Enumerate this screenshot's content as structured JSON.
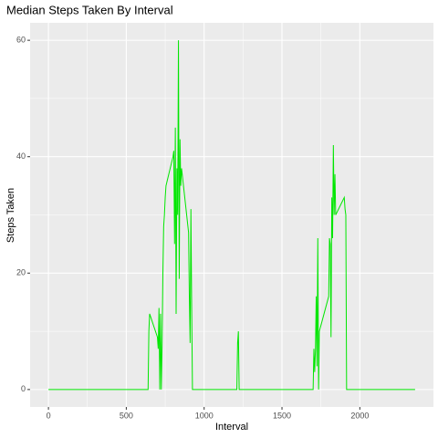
{
  "chart_data": {
    "type": "line",
    "title": "Median Steps Taken By Interval",
    "x_label": "Interval",
    "y_label": "Steps Taken",
    "x": [
      0,
      640,
      645,
      650,
      700,
      705,
      710,
      715,
      720,
      725,
      730,
      735,
      740,
      745,
      750,
      755,
      800,
      805,
      810,
      815,
      820,
      825,
      830,
      835,
      840,
      845,
      850,
      855,
      900,
      905,
      910,
      915,
      920,
      925,
      930,
      1210,
      1215,
      1220,
      1225,
      1700,
      1705,
      1710,
      1715,
      1720,
      1725,
      1730,
      1735,
      1740,
      1800,
      1805,
      1810,
      1815,
      1820,
      1825,
      1830,
      1835,
      1840,
      1845,
      1900,
      1905,
      1910,
      1915,
      2355
    ],
    "series": [
      {
        "color": "#00e600",
        "values": [
          0,
          0,
          10,
          13,
          9,
          7,
          14,
          0,
          13,
          0,
          8,
          20,
          28,
          30,
          33,
          35,
          40,
          41,
          25,
          45,
          13,
          38,
          30,
          60,
          19,
          43,
          35,
          38,
          27,
          16,
          8,
          31,
          14,
          0,
          0,
          0,
          8,
          10,
          0,
          0,
          7,
          3,
          7,
          16,
          4,
          26,
          0,
          10,
          16,
          26,
          25,
          9,
          33,
          26,
          42,
          30,
          37,
          30,
          33,
          31,
          30,
          0,
          0
        ]
      }
    ],
    "xlim": [
      -117.75,
      2472.75
    ],
    "ylim": [
      -3,
      63
    ],
    "xticks": [
      0,
      500,
      1000,
      1500,
      2000
    ],
    "yticks": [
      0,
      20,
      40,
      60
    ],
    "grid": true
  }
}
